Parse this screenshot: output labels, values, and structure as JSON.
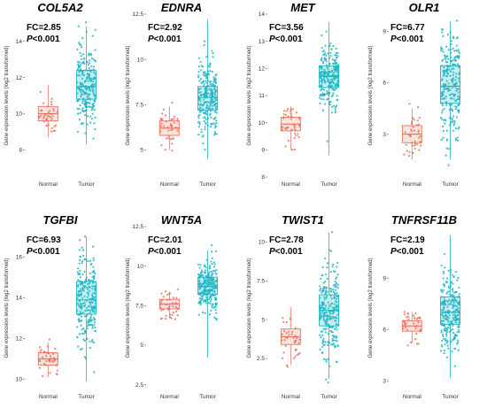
{
  "colors": {
    "normal": "#e8705f",
    "tumor": "#1fb5c2",
    "normal_fill": "#fbe3dd",
    "tumor_fill": "#c9eef1"
  },
  "ylabel": "Gene expression levels (log2 transformed)",
  "chart_data": [
    {
      "type": "box",
      "title": "COL5A2",
      "fc_text": "FC=2.85",
      "p_text": "P<0.001",
      "categories": [
        "Normal",
        "Tumor"
      ],
      "ylim": [
        6.5,
        15.5
      ],
      "yticks": [
        8,
        10,
        12,
        14
      ],
      "boxes": [
        {
          "q1": 9.6,
          "median": 10.0,
          "q3": 10.4,
          "whisker_low": 8.7,
          "whisker_high": 11.6,
          "n": 40
        },
        {
          "q1": 10.8,
          "median": 11.5,
          "q3": 12.4,
          "whisker_low": 8.3,
          "whisker_high": 14.8,
          "n": 240
        }
      ]
    },
    {
      "type": "box",
      "title": "EDNRA",
      "fc_text": "FC=2.92",
      "p_text": "P<0.001",
      "categories": [
        "Normal",
        "Tumor"
      ],
      "ylim": [
        3.5,
        12.5
      ],
      "yticks": [
        5.0,
        7.5,
        10.0,
        12.5
      ],
      "boxes": [
        {
          "q1": 5.8,
          "median": 6.2,
          "q3": 6.6,
          "whisker_low": 5.0,
          "whisker_high": 7.4,
          "n": 40
        },
        {
          "q1": 7.2,
          "median": 7.9,
          "q3": 8.5,
          "whisker_low": 4.5,
          "whisker_high": 12.2,
          "n": 240
        }
      ]
    },
    {
      "type": "box",
      "title": "MET",
      "fc_text": "FC=3.56",
      "p_text": "P<0.001",
      "categories": [
        "Normal",
        "Tumor"
      ],
      "ylim": [
        8,
        14
      ],
      "yticks": [
        8,
        9,
        10,
        11,
        12,
        13,
        14
      ],
      "boxes": [
        {
          "q1": 9.7,
          "median": 9.95,
          "q3": 10.2,
          "whisker_low": 9.0,
          "whisker_high": 10.6,
          "n": 40
        },
        {
          "q1": 11.3,
          "median": 11.7,
          "q3": 12.1,
          "whisker_low": 8.8,
          "whisker_high": 13.7,
          "n": 240
        }
      ]
    },
    {
      "type": "box",
      "title": "OLR1",
      "fc_text": "FC=6.77",
      "p_text": "P<0.001",
      "categories": [
        "Normal",
        "Tumor"
      ],
      "ylim": [
        0.5,
        10
      ],
      "yticks": [
        3,
        6,
        9
      ],
      "boxes": [
        {
          "q1": 2.5,
          "median": 3.0,
          "q3": 3.5,
          "whisker_low": 1.5,
          "whisker_high": 4.5,
          "n": 40
        },
        {
          "q1": 4.8,
          "median": 5.8,
          "q3": 7.0,
          "whisker_low": 1.5,
          "whisker_high": 9.6,
          "n": 240
        }
      ]
    },
    {
      "type": "box",
      "title": "TGFBI",
      "fc_text": "FC=6.93",
      "p_text": "P<0.001",
      "categories": [
        "Normal",
        "Tumor"
      ],
      "ylim": [
        9.5,
        17.5
      ],
      "yticks": [
        10,
        12,
        14,
        16
      ],
      "boxes": [
        {
          "q1": 10.7,
          "median": 11.0,
          "q3": 11.3,
          "whisker_low": 10.1,
          "whisker_high": 11.8,
          "n": 40
        },
        {
          "q1": 13.2,
          "median": 13.9,
          "q3": 14.8,
          "whisker_low": 9.9,
          "whisker_high": 17.0,
          "n": 240
        }
      ]
    },
    {
      "type": "box",
      "title": "WNT5A",
      "fc_text": "FC=2.01",
      "p_text": "P<0.001",
      "categories": [
        "Normal",
        "Tumor"
      ],
      "ylim": [
        2.2,
        12.5
      ],
      "yticks": [
        2.5,
        5.0,
        7.5,
        10.0,
        12.5
      ],
      "boxes": [
        {
          "q1": 7.3,
          "median": 7.6,
          "q3": 7.9,
          "whisker_low": 6.8,
          "whisker_high": 8.4,
          "n": 40
        },
        {
          "q1": 8.2,
          "median": 8.7,
          "q3": 9.3,
          "whisker_low": 4.2,
          "whisker_high": 11.0,
          "n": 240
        }
      ]
    },
    {
      "type": "box",
      "title": "TWIST1",
      "fc_text": "FC=2.78",
      "p_text": "P<0.001",
      "categories": [
        "Normal",
        "Tumor"
      ],
      "ylim": [
        0.5,
        11
      ],
      "yticks": [
        2.5,
        5.0,
        7.5,
        10.0
      ],
      "boxes": [
        {
          "q1": 3.4,
          "median": 3.9,
          "q3": 4.4,
          "whisker_low": 2.1,
          "whisker_high": 5.8,
          "n": 40
        },
        {
          "q1": 4.6,
          "median": 5.6,
          "q3": 6.6,
          "whisker_low": 1.2,
          "whisker_high": 10.6,
          "n": 240
        }
      ]
    },
    {
      "type": "box",
      "title": "TNFRSF11B",
      "fc_text": "FC=2.19",
      "p_text": "P<0.001",
      "categories": [
        "Normal",
        "Tumor"
      ],
      "ylim": [
        2.5,
        12
      ],
      "yticks": [
        3,
        6,
        9
      ],
      "boxes": [
        {
          "q1": 5.9,
          "median": 6.2,
          "q3": 6.5,
          "whisker_low": 5.2,
          "whisker_high": 7.0,
          "n": 40
        },
        {
          "q1": 6.3,
          "median": 7.0,
          "q3": 7.9,
          "whisker_low": 3.2,
          "whisker_high": 11.5,
          "n": 240
        }
      ]
    }
  ]
}
